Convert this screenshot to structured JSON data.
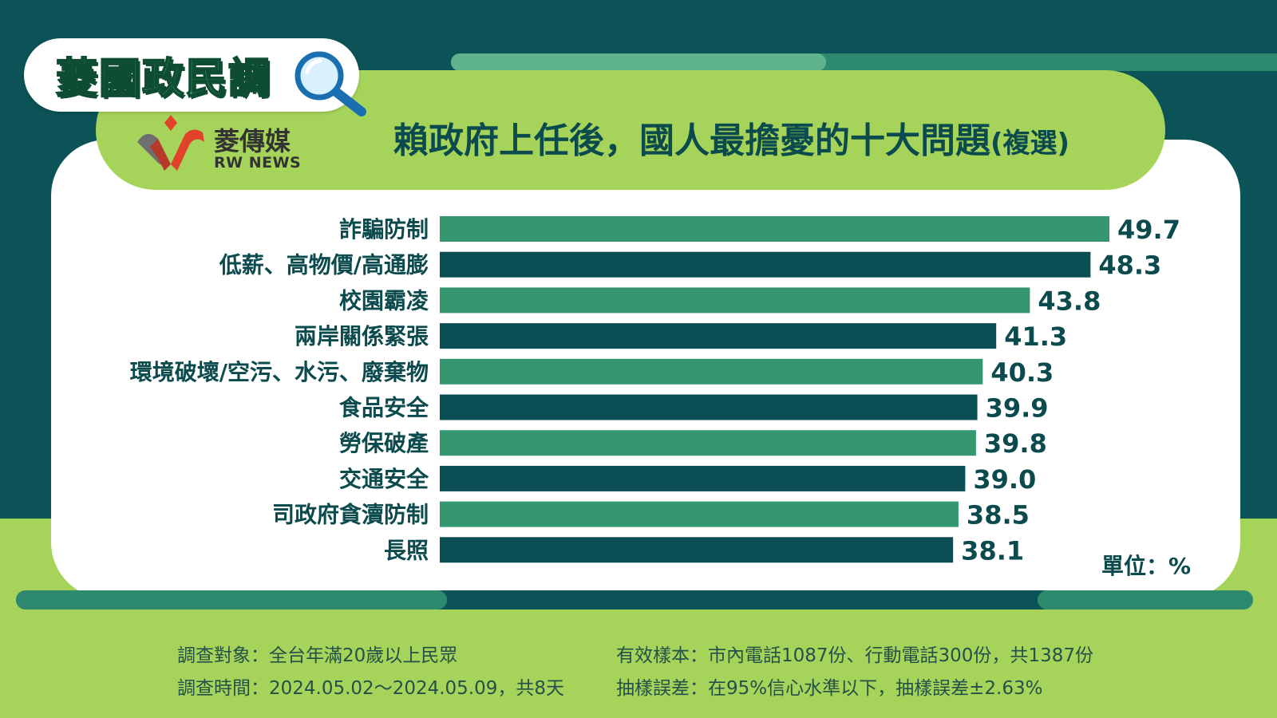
{
  "header": {
    "badge": "菱國政民調",
    "logo_cn": "菱傳媒",
    "logo_en": "RW NEWS",
    "title": "賴政府上任後，國人最擔憂的十大問題",
    "title_suffix": "(複選)"
  },
  "chart_data": {
    "type": "bar",
    "orientation": "horizontal",
    "categories": [
      "詐騙防制",
      "低薪、高物價/高通膨",
      "校園霸凌",
      "兩岸關係緊張",
      "環境破壞/空污、水污、廢棄物",
      "食品安全",
      "勞保破產",
      "交通安全",
      "司政府貪瀆防制",
      "長照"
    ],
    "values": [
      49.7,
      48.3,
      43.8,
      41.3,
      40.3,
      39.9,
      39.8,
      39.0,
      38.5,
      38.1
    ],
    "value_labels": [
      "49.7",
      "48.3",
      "43.8",
      "41.3",
      "40.3",
      "39.9",
      "39.8",
      "39.0",
      "38.5",
      "38.1"
    ],
    "unit": "單位：%",
    "colors": [
      "#35976f",
      "#0b4f55"
    ],
    "xlim": [
      0,
      49.7
    ],
    "grid": false,
    "legend": "none"
  },
  "footer": {
    "subject": "調查對象：全台年滿20歲以上民眾",
    "period": "調查時間：2024.05.02～2024.05.09，共8天",
    "sample": "有效樣本：市內電話1087份、行動電話300份，共1387份",
    "error": "抽樣誤差：在95%信心水準以下，抽樣誤差±2.63%"
  },
  "colors": {
    "dark_teal": "#0b5357",
    "lime": "#a6d45a",
    "bar_light": "#35976f",
    "bar_dark": "#0b4f55",
    "text_dark": "#0b4a4d"
  }
}
